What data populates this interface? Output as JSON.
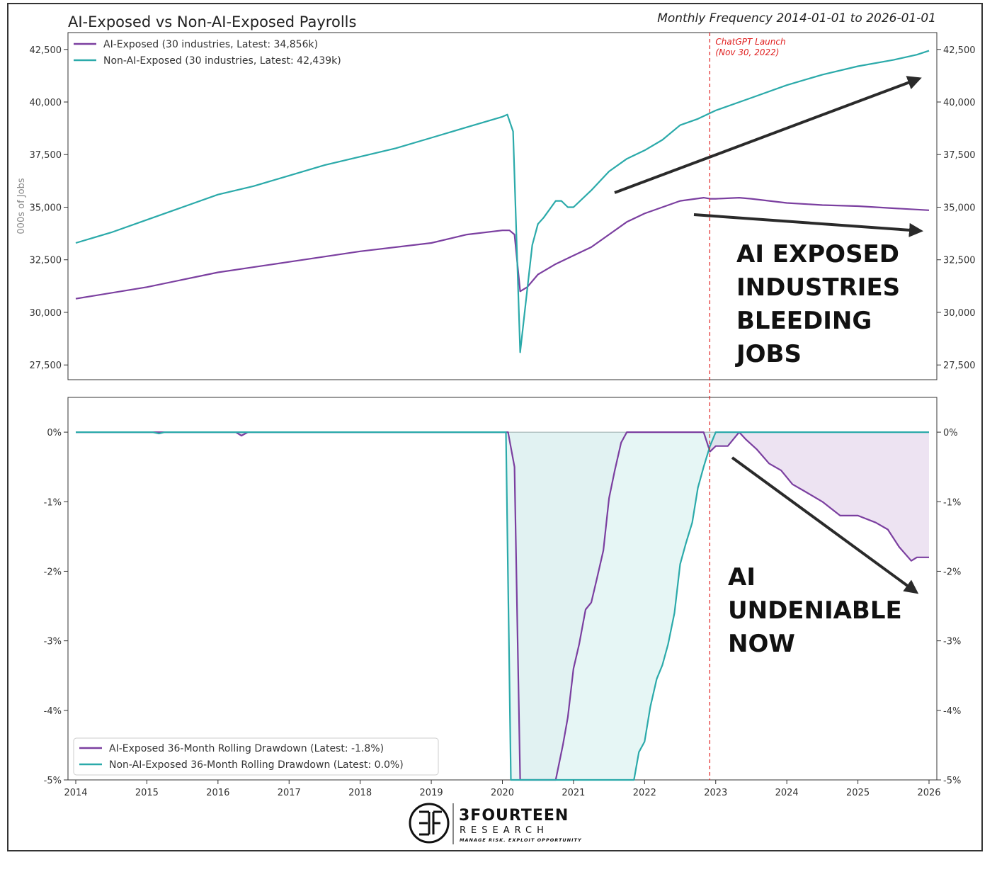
{
  "chart_data": [
    {
      "type": "line",
      "title": "AI-Exposed vs Non-AI-Exposed Payrolls",
      "subtitle": "Monthly Frequency 2014-01-01 to 2026-01-01",
      "ylabel": "000s of Jobs",
      "ylim": [
        26800,
        43300
      ],
      "xlim": [
        2014.0,
        2026.0
      ],
      "yticks": [
        27500,
        30000,
        32500,
        35000,
        37500,
        40000,
        42500
      ],
      "ytick_labels": [
        "27,500",
        "30,000",
        "32,500",
        "35,000",
        "37,500",
        "40,000",
        "42,500"
      ],
      "series": [
        {
          "name": "AI-Exposed (30 industries, Latest: 34,856k)",
          "color": "#7B3FA0",
          "points": [
            [
              2014.0,
              30650
            ],
            [
              2015.0,
              31200
            ],
            [
              2016.0,
              31900
            ],
            [
              2017.0,
              32400
            ],
            [
              2018.0,
              32900
            ],
            [
              2019.0,
              33300
            ],
            [
              2019.5,
              33700
            ],
            [
              2020.0,
              33900
            ],
            [
              2020.1,
              33900
            ],
            [
              2020.17,
              33700
            ],
            [
              2020.25,
              31000
            ],
            [
              2020.35,
              31200
            ],
            [
              2020.5,
              31800
            ],
            [
              2020.75,
              32300
            ],
            [
              2021.0,
              32700
            ],
            [
              2021.25,
              33100
            ],
            [
              2021.5,
              33700
            ],
            [
              2021.75,
              34300
            ],
            [
              2022.0,
              34700
            ],
            [
              2022.25,
              35000
            ],
            [
              2022.5,
              35300
            ],
            [
              2022.83,
              35450
            ],
            [
              2022.92,
              35400
            ],
            [
              2023.0,
              35400
            ],
            [
              2023.33,
              35450
            ],
            [
              2023.5,
              35400
            ],
            [
              2024.0,
              35200
            ],
            [
              2024.5,
              35100
            ],
            [
              2025.0,
              35050
            ],
            [
              2025.5,
              34950
            ],
            [
              2026.0,
              34856
            ]
          ]
        },
        {
          "name": "Non-AI-Exposed (30 industries, Latest: 42,439k)",
          "color": "#2BAAAA",
          "points": [
            [
              2014.0,
              33300
            ],
            [
              2014.5,
              33800
            ],
            [
              2015.0,
              34400
            ],
            [
              2015.5,
              35000
            ],
            [
              2016.0,
              35600
            ],
            [
              2016.5,
              36000
            ],
            [
              2017.0,
              36500
            ],
            [
              2017.5,
              37000
            ],
            [
              2018.0,
              37400
            ],
            [
              2018.5,
              37800
            ],
            [
              2019.0,
              38300
            ],
            [
              2019.5,
              38800
            ],
            [
              2020.0,
              39300
            ],
            [
              2020.07,
              39400
            ],
            [
              2020.15,
              38600
            ],
            [
              2020.25,
              28100
            ],
            [
              2020.33,
              30500
            ],
            [
              2020.42,
              33200
            ],
            [
              2020.5,
              34200
            ],
            [
              2020.58,
              34500
            ],
            [
              2020.75,
              35300
            ],
            [
              2020.83,
              35300
            ],
            [
              2020.92,
              35000
            ],
            [
              2021.0,
              35000
            ],
            [
              2021.25,
              35800
            ],
            [
              2021.5,
              36700
            ],
            [
              2021.75,
              37300
            ],
            [
              2022.0,
              37700
            ],
            [
              2022.25,
              38200
            ],
            [
              2022.5,
              38900
            ],
            [
              2022.75,
              39200
            ],
            [
              2023.0,
              39600
            ],
            [
              2023.5,
              40200
            ],
            [
              2024.0,
              40800
            ],
            [
              2024.5,
              41300
            ],
            [
              2025.0,
              41700
            ],
            [
              2025.5,
              42000
            ],
            [
              2025.83,
              42250
            ],
            [
              2026.0,
              42439
            ]
          ]
        }
      ],
      "annotations": {
        "vline_date": 2022.917,
        "vline_label_1": "ChatGPT Launch",
        "vline_label_2": "(Nov 30, 2022)",
        "callout_lines": [
          "AI EXPOSED",
          "INDUSTRIES",
          "BLEEDING",
          "JOBS"
        ]
      }
    },
    {
      "type": "area",
      "ylim": [
        -5,
        0.5
      ],
      "xlim": [
        2014.0,
        2026.0
      ],
      "yticks": [
        0,
        -1,
        -2,
        -3,
        -4,
        -5
      ],
      "ytick_labels": [
        "0%",
        "-1%",
        "-2%",
        "-3%",
        "-4%",
        "-5%"
      ],
      "xticks": [
        2014,
        2015,
        2016,
        2017,
        2018,
        2019,
        2020,
        2021,
        2022,
        2023,
        2024,
        2025,
        2026
      ],
      "xtick_labels": [
        "2014",
        "2015",
        "2016",
        "2017",
        "2018",
        "2019",
        "2020",
        "2021",
        "2022",
        "2023",
        "2024",
        "2025",
        "2026"
      ],
      "series": [
        {
          "name": "AI-Exposed 36-Month Rolling Drawdown (Latest: -1.8%)",
          "color": "#7B3FA0",
          "fill": "#DCE0EA",
          "points": [
            [
              2014.0,
              0
            ],
            [
              2016.25,
              0
            ],
            [
              2016.33,
              -0.05
            ],
            [
              2016.42,
              0
            ],
            [
              2020.08,
              0
            ],
            [
              2020.17,
              -0.5
            ],
            [
              2020.2,
              -2.2
            ],
            [
              2020.25,
              -5
            ],
            [
              2020.75,
              -5
            ],
            [
              2020.85,
              -4.5
            ],
            [
              2020.92,
              -4.1
            ],
            [
              2021.0,
              -3.4
            ],
            [
              2021.08,
              -3.05
            ],
            [
              2021.17,
              -2.55
            ],
            [
              2021.25,
              -2.45
            ],
            [
              2021.33,
              -2.1
            ],
            [
              2021.42,
              -1.7
            ],
            [
              2021.5,
              -0.95
            ],
            [
              2021.58,
              -0.55
            ],
            [
              2021.67,
              -0.15
            ],
            [
              2021.75,
              0
            ],
            [
              2022.83,
              0
            ],
            [
              2022.92,
              -0.28
            ],
            [
              2023.0,
              -0.2
            ],
            [
              2023.17,
              -0.2
            ],
            [
              2023.33,
              0
            ],
            [
              2023.42,
              -0.1
            ],
            [
              2023.58,
              -0.25
            ],
            [
              2023.75,
              -0.45
            ],
            [
              2023.92,
              -0.55
            ],
            [
              2024.08,
              -0.75
            ],
            [
              2024.25,
              -0.85
            ],
            [
              2024.5,
              -1.0
            ],
            [
              2024.75,
              -1.2
            ],
            [
              2025.0,
              -1.2
            ],
            [
              2025.25,
              -1.3
            ],
            [
              2025.42,
              -1.4
            ],
            [
              2025.58,
              -1.65
            ],
            [
              2025.75,
              -1.85
            ],
            [
              2025.83,
              -1.8
            ],
            [
              2026.0,
              -1.8
            ]
          ]
        },
        {
          "name": "Non-AI-Exposed 36-Month Rolling Drawdown (Latest: 0.0%)",
          "color": "#2BAAAA",
          "fill": "#E2F4F3",
          "points": [
            [
              2014.0,
              0
            ],
            [
              2015.08,
              0
            ],
            [
              2015.17,
              -0.02
            ],
            [
              2015.25,
              0
            ],
            [
              2020.05,
              0
            ],
            [
              2020.12,
              -5
            ],
            [
              2021.85,
              -5
            ],
            [
              2021.92,
              -4.6
            ],
            [
              2022.0,
              -4.45
            ],
            [
              2022.08,
              -3.95
            ],
            [
              2022.17,
              -3.55
            ],
            [
              2022.25,
              -3.35
            ],
            [
              2022.33,
              -3.05
            ],
            [
              2022.42,
              -2.6
            ],
            [
              2022.5,
              -1.9
            ],
            [
              2022.58,
              -1.6
            ],
            [
              2022.67,
              -1.3
            ],
            [
              2022.75,
              -0.8
            ],
            [
              2022.83,
              -0.5
            ],
            [
              2022.92,
              -0.2
            ],
            [
              2023.0,
              0
            ],
            [
              2026.0,
              0
            ]
          ]
        }
      ],
      "annotations": {
        "callout_lines": [
          "AI",
          "UNDENIABLE",
          "NOW"
        ]
      }
    }
  ],
  "branding": {
    "name": "3FOURTEEN",
    "sub": "RESEARCH",
    "tagline": "MANAGE RISK. EXPLOIT OPPORTUNITY"
  },
  "colors": {
    "ai": "#7B3FA0",
    "nonai": "#2BAAAA",
    "vline": "#E02020",
    "arrow": "#2a2a2a"
  }
}
